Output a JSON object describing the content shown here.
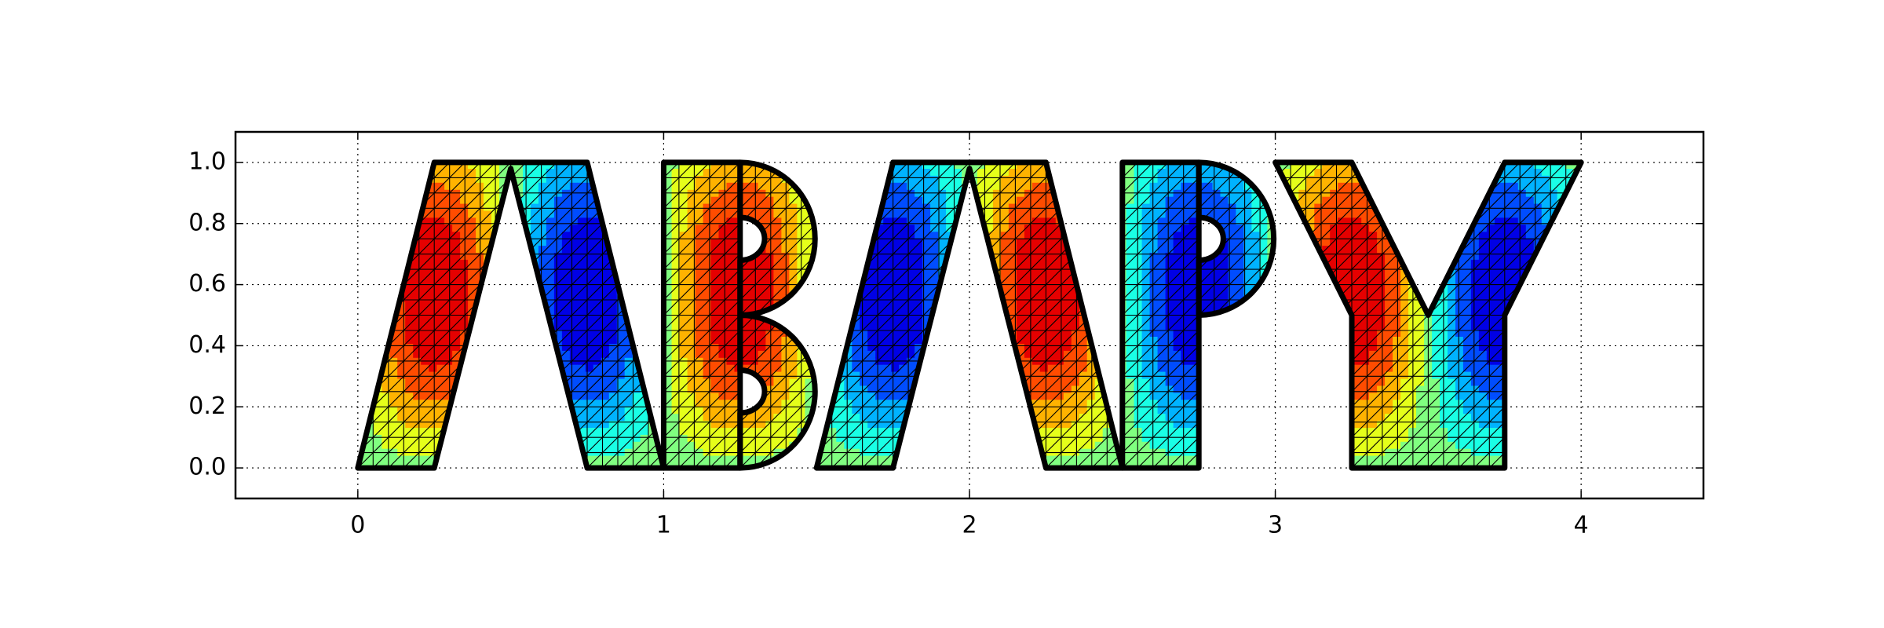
{
  "chart_data": {
    "type": "contour",
    "title": "",
    "xlabel": "",
    "ylabel": "",
    "xlim": [
      -0.4,
      4.4
    ],
    "ylim": [
      -0.1,
      1.1
    ],
    "grid": true,
    "grid_style": "dotted",
    "x_ticks": [
      0,
      1,
      2,
      3,
      4
    ],
    "x_tick_labels": [
      "0",
      "1",
      "2",
      "3",
      "4"
    ],
    "y_ticks": [
      0.0,
      0.2,
      0.4,
      0.6,
      0.8,
      1.0
    ],
    "y_tick_labels": [
      "0.0",
      "0.2",
      "0.4",
      "0.6",
      "0.8",
      "1.0"
    ],
    "colormap": "jet",
    "field_range": [
      -0.25,
      0.95
    ],
    "field_pattern": "rising-left / falling-right sine pattern along x with peak near the top edge",
    "glyphs": [
      {
        "letter": "Λ",
        "x_range": [
          0.0,
          1.0
        ]
      },
      {
        "letter": "B",
        "x_range": [
          1.0,
          1.5
        ]
      },
      {
        "letter": "Λ",
        "x_range": [
          1.5,
          2.5
        ]
      },
      {
        "letter": "P",
        "x_range": [
          2.5,
          3.0
        ]
      },
      {
        "letter": "Y",
        "x_range": [
          3.0,
          4.0
        ]
      }
    ],
    "outline_color": "#000000",
    "mesh_color": "#000000"
  }
}
